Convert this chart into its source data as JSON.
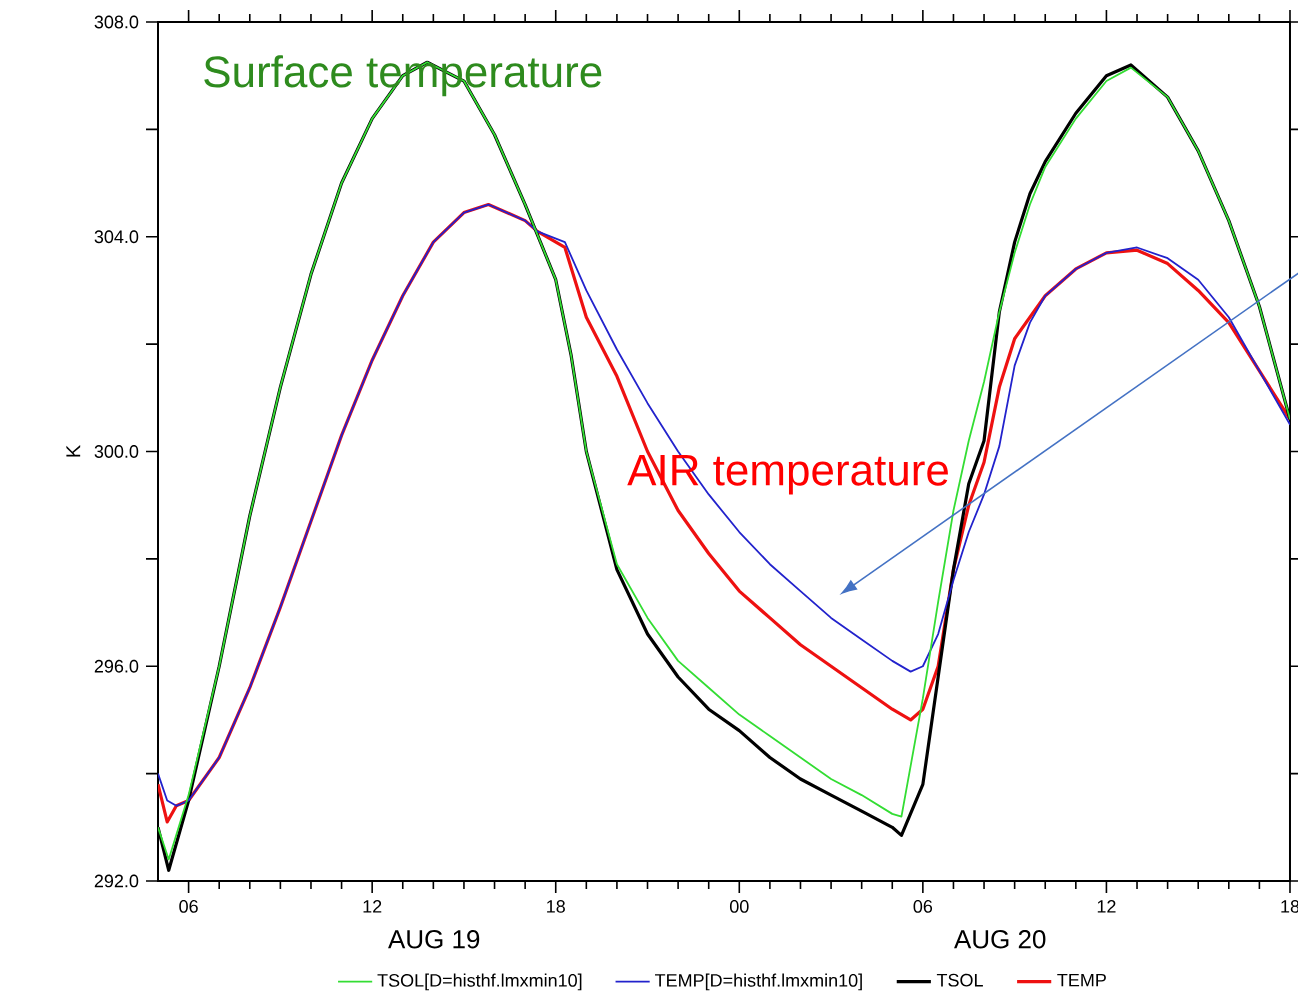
{
  "chart_data": {
    "type": "line",
    "ylabel": "K",
    "xlim": [
      5,
      42
    ],
    "ylim": [
      292,
      308
    ],
    "xticks": [
      {
        "value": 6,
        "label": "06"
      },
      {
        "value": 12,
        "label": "12"
      },
      {
        "value": 18,
        "label": "18"
      },
      {
        "value": 24,
        "label": "00"
      },
      {
        "value": 30,
        "label": "06"
      },
      {
        "value": 36,
        "label": "12"
      },
      {
        "value": 42,
        "label": "18"
      }
    ],
    "yticks": [
      {
        "value": 292,
        "label": "292.0"
      },
      {
        "value": 294,
        "label": null
      },
      {
        "value": 296,
        "label": "296.0"
      },
      {
        "value": 298,
        "label": null
      },
      {
        "value": 300,
        "label": "300.0"
      },
      {
        "value": 302,
        "label": null
      },
      {
        "value": 304,
        "label": "304.0"
      },
      {
        "value": 306,
        "label": null
      },
      {
        "value": 308,
        "label": "308.0"
      }
    ],
    "legend": "bottom",
    "grid": false,
    "marker": "none",
    "line_style": "solid",
    "annotations": [
      {
        "text": "Surface temperature",
        "x": 13,
        "y": 307
      },
      "AIR temperature",
      "AUG 19",
      "AUG 20"
    ],
    "series": [
      {
        "name": "TSOL[D=histhf.lmxmin10]",
        "color": "#33dd33",
        "x": [
          5,
          5.35,
          6,
          7,
          8,
          9,
          10,
          11,
          12,
          13,
          13.8,
          15,
          16,
          17,
          17.5,
          18,
          18.5,
          19,
          20,
          21,
          22,
          23,
          24,
          25,
          26,
          27,
          28,
          29,
          29.3,
          30,
          30.5,
          31,
          31.5,
          32,
          32.5,
          33,
          33.5,
          34,
          35,
          36,
          36.8,
          38,
          39,
          40,
          41,
          42
        ],
        "values": [
          293.0,
          292.4,
          293.6,
          296.0,
          298.8,
          301.2,
          303.3,
          305.0,
          306.2,
          307.0,
          307.25,
          306.9,
          305.9,
          304.6,
          303.9,
          303.2,
          301.8,
          300.0,
          297.9,
          296.9,
          296.1,
          295.6,
          295.1,
          294.7,
          294.3,
          293.9,
          293.6,
          293.25,
          293.2,
          295.4,
          297.2,
          298.9,
          300.2,
          301.3,
          302.6,
          303.7,
          304.6,
          305.3,
          306.2,
          306.9,
          307.15,
          306.6,
          305.6,
          304.3,
          302.7,
          300.6
        ]
      },
      {
        "name": "TEMP[D=histhf.lmxmin10]",
        "color": "#2222cc",
        "x": [
          5,
          5.3,
          5.6,
          6,
          7,
          8,
          9,
          10,
          11,
          12,
          13,
          14,
          15,
          15.8,
          17,
          17.4,
          18.3,
          19,
          20,
          21,
          22,
          23,
          24,
          25,
          26,
          27,
          28,
          29,
          29.6,
          30,
          30.5,
          31,
          31.5,
          32,
          32.5,
          33,
          33.5,
          34,
          35,
          36,
          37,
          38,
          39,
          40,
          41,
          42
        ],
        "values": [
          294.0,
          293.5,
          293.4,
          293.5,
          294.3,
          295.6,
          297.1,
          298.7,
          300.3,
          301.7,
          302.9,
          303.9,
          304.45,
          304.6,
          304.3,
          304.1,
          303.9,
          303.0,
          301.9,
          300.9,
          300.0,
          299.2,
          298.5,
          297.9,
          297.4,
          296.9,
          296.5,
          296.1,
          295.9,
          296.0,
          296.6,
          297.6,
          298.5,
          299.2,
          300.1,
          301.6,
          302.4,
          302.9,
          303.4,
          303.7,
          303.8,
          303.6,
          303.2,
          302.5,
          301.5,
          300.5
        ]
      },
      {
        "name": "TSOL",
        "color": "#000000",
        "x": [
          5,
          5.35,
          6,
          7,
          8,
          9,
          10,
          11,
          12,
          13,
          13.8,
          15,
          16,
          17,
          17.5,
          18,
          18.5,
          19,
          20,
          21,
          22,
          23,
          24,
          25,
          26,
          27,
          28,
          29,
          29.3,
          30,
          30.5,
          31,
          31.5,
          32,
          32.5,
          33,
          33.5,
          34,
          35,
          36,
          36.8,
          38,
          39,
          40,
          41,
          42
        ],
        "values": [
          293.0,
          292.2,
          293.5,
          296.0,
          298.8,
          301.2,
          303.3,
          305.0,
          306.2,
          307.0,
          307.25,
          306.9,
          305.9,
          304.6,
          303.9,
          303.2,
          301.8,
          300.0,
          297.8,
          296.6,
          295.8,
          295.2,
          294.8,
          294.3,
          293.9,
          293.6,
          293.3,
          293.0,
          292.85,
          293.8,
          295.8,
          297.8,
          299.4,
          300.2,
          302.6,
          303.9,
          304.8,
          305.4,
          306.3,
          307.0,
          307.2,
          306.6,
          305.6,
          304.3,
          302.7,
          300.6
        ]
      },
      {
        "name": "TEMP",
        "color": "#ee1111",
        "x": [
          5,
          5.3,
          5.6,
          6,
          7,
          8,
          9,
          10,
          11,
          12,
          13,
          14,
          15,
          15.8,
          17,
          17.4,
          18.3,
          19,
          20,
          21,
          22,
          23,
          24,
          25,
          26,
          27,
          28,
          29,
          29.6,
          30,
          30.5,
          31,
          31.5,
          32,
          32.5,
          33,
          34,
          35,
          36,
          37,
          38,
          39,
          40,
          41,
          42
        ],
        "values": [
          293.8,
          293.1,
          293.4,
          293.5,
          294.3,
          295.6,
          297.1,
          298.7,
          300.3,
          301.7,
          302.9,
          303.9,
          304.45,
          304.6,
          304.3,
          304.1,
          303.8,
          302.5,
          301.4,
          300.0,
          298.9,
          298.1,
          297.4,
          296.9,
          296.4,
          296.0,
          295.6,
          295.2,
          295.0,
          295.2,
          296.0,
          297.8,
          299.0,
          299.8,
          301.2,
          302.1,
          302.9,
          303.4,
          303.7,
          303.75,
          303.5,
          303.0,
          302.4,
          301.5,
          300.6
        ]
      }
    ]
  }
}
